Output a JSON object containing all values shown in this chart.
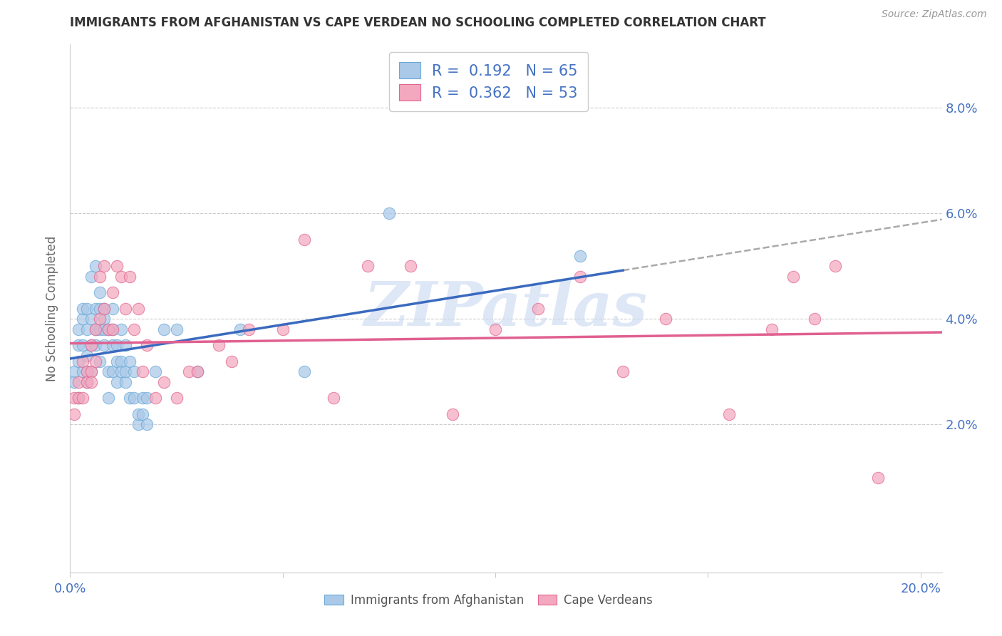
{
  "title": "IMMIGRANTS FROM AFGHANISTAN VS CAPE VERDEAN NO SCHOOLING COMPLETED CORRELATION CHART",
  "source": "Source: ZipAtlas.com",
  "ylabel": "No Schooling Completed",
  "legend_entries": [
    {
      "label": "Immigrants from Afghanistan",
      "R": "0.192",
      "N": "65",
      "color": "#aac8e8",
      "edge": "#6aaad8"
    },
    {
      "label": "Cape Verdeans",
      "R": "0.362",
      "N": "53",
      "color": "#f4a8c0",
      "edge": "#e06890"
    }
  ],
  "xlim": [
    0.0,
    0.205
  ],
  "ylim": [
    -0.008,
    0.092
  ],
  "xtick_positions": [
    0.0,
    0.05,
    0.1,
    0.15,
    0.2
  ],
  "xtick_labels_shown": {
    "0.0": "0.0%",
    "0.20": "20.0%"
  },
  "yticks_right": [
    0.02,
    0.04,
    0.06,
    0.08
  ],
  "ytick_labels_right": [
    "2.0%",
    "4.0%",
    "6.0%",
    "8.0%"
  ],
  "line_blue": "#3a6abf",
  "line_pink": "#e06090",
  "line_dash_color": "#aaaaaa",
  "right_axis_color": "#4472c4",
  "grid_color": "#cccccc",
  "background_color": "#ffffff",
  "title_color": "#333333",
  "afghanistan_x": [
    0.001,
    0.001,
    0.002,
    0.002,
    0.002,
    0.002,
    0.003,
    0.003,
    0.003,
    0.003,
    0.004,
    0.004,
    0.004,
    0.004,
    0.004,
    0.005,
    0.005,
    0.005,
    0.005,
    0.006,
    0.006,
    0.006,
    0.006,
    0.007,
    0.007,
    0.007,
    0.007,
    0.008,
    0.008,
    0.008,
    0.008,
    0.009,
    0.009,
    0.009,
    0.01,
    0.01,
    0.01,
    0.01,
    0.011,
    0.011,
    0.011,
    0.012,
    0.012,
    0.012,
    0.013,
    0.013,
    0.013,
    0.014,
    0.014,
    0.015,
    0.015,
    0.016,
    0.016,
    0.017,
    0.017,
    0.018,
    0.018,
    0.02,
    0.022,
    0.025,
    0.03,
    0.04,
    0.055,
    0.075,
    0.12
  ],
  "afghanistan_y": [
    0.03,
    0.028,
    0.032,
    0.025,
    0.035,
    0.038,
    0.03,
    0.04,
    0.042,
    0.035,
    0.028,
    0.033,
    0.038,
    0.042,
    0.03,
    0.035,
    0.04,
    0.03,
    0.048,
    0.038,
    0.042,
    0.035,
    0.05,
    0.042,
    0.038,
    0.045,
    0.032,
    0.04,
    0.038,
    0.042,
    0.035,
    0.038,
    0.03,
    0.025,
    0.042,
    0.038,
    0.03,
    0.035,
    0.035,
    0.032,
    0.028,
    0.038,
    0.032,
    0.03,
    0.035,
    0.028,
    0.03,
    0.032,
    0.025,
    0.03,
    0.025,
    0.02,
    0.022,
    0.025,
    0.022,
    0.025,
    0.02,
    0.03,
    0.038,
    0.038,
    0.03,
    0.038,
    0.03,
    0.06,
    0.052
  ],
  "capeverde_x": [
    0.001,
    0.001,
    0.002,
    0.002,
    0.003,
    0.003,
    0.004,
    0.004,
    0.005,
    0.005,
    0.005,
    0.006,
    0.006,
    0.007,
    0.007,
    0.008,
    0.008,
    0.009,
    0.01,
    0.01,
    0.011,
    0.012,
    0.013,
    0.014,
    0.015,
    0.016,
    0.017,
    0.018,
    0.02,
    0.022,
    0.025,
    0.028,
    0.03,
    0.035,
    0.038,
    0.042,
    0.05,
    0.055,
    0.062,
    0.07,
    0.08,
    0.09,
    0.1,
    0.11,
    0.12,
    0.13,
    0.14,
    0.155,
    0.165,
    0.17,
    0.175,
    0.18,
    0.19
  ],
  "capeverde_y": [
    0.025,
    0.022,
    0.028,
    0.025,
    0.032,
    0.025,
    0.03,
    0.028,
    0.035,
    0.03,
    0.028,
    0.038,
    0.032,
    0.04,
    0.048,
    0.042,
    0.05,
    0.038,
    0.038,
    0.045,
    0.05,
    0.048,
    0.042,
    0.048,
    0.038,
    0.042,
    0.03,
    0.035,
    0.025,
    0.028,
    0.025,
    0.03,
    0.03,
    0.035,
    0.032,
    0.038,
    0.038,
    0.055,
    0.025,
    0.05,
    0.05,
    0.022,
    0.038,
    0.042,
    0.048,
    0.03,
    0.04,
    0.022,
    0.038,
    0.048,
    0.04,
    0.05,
    0.01
  ],
  "watermark_text": "ZIPatlas",
  "watermark_color": "#c8d8f0",
  "af_line_end_x": 0.13
}
